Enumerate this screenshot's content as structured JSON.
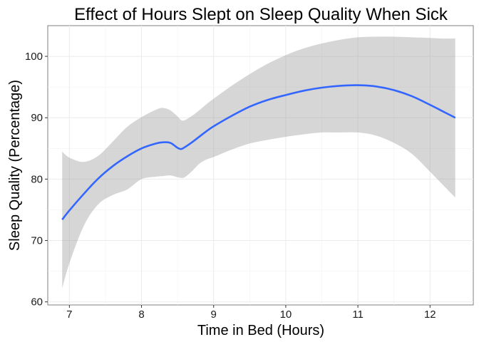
{
  "chart_data": {
    "type": "line",
    "title": "Effect of Hours Slept on Sleep Quality When Sick",
    "xlabel": "Time in Bed (Hours)",
    "ylabel": "Sleep Quality (Percentage)",
    "xlim": [
      6.7,
      12.6
    ],
    "ylim": [
      59.5,
      105
    ],
    "x_ticks": [
      7,
      8,
      9,
      10,
      11,
      12
    ],
    "y_ticks": [
      60,
      70,
      80,
      90,
      100
    ],
    "grid": true,
    "legend": "none",
    "series": [
      {
        "color": "#3366ff",
        "x": [
          6.9,
          7.0,
          7.2,
          7.4,
          7.6,
          7.8,
          8.0,
          8.2,
          8.3,
          8.4,
          8.5,
          8.55,
          8.6,
          8.7,
          8.8,
          8.9,
          9.0,
          9.25,
          9.5,
          9.75,
          10.0,
          10.25,
          10.5,
          10.75,
          11.0,
          11.25,
          11.5,
          11.75,
          12.0,
          12.2,
          12.35
        ],
        "y": [
          73.4,
          74.9,
          77.6,
          80.1,
          82.1,
          83.7,
          85.0,
          85.8,
          86.0,
          85.9,
          85.1,
          84.9,
          85.2,
          86.0,
          86.9,
          87.8,
          88.6,
          90.3,
          91.8,
          92.9,
          93.7,
          94.4,
          94.9,
          95.2,
          95.3,
          95.1,
          94.5,
          93.5,
          92.1,
          90.9,
          90.0
        ],
        "ci_upper": [
          84.5,
          83.5,
          82.8,
          83.8,
          86.1,
          88.5,
          90.1,
          91.3,
          91.6,
          91.2,
          90.2,
          89.6,
          89.6,
          90.3,
          91.2,
          92.2,
          93.1,
          95.2,
          97.1,
          98.8,
          100.2,
          101.3,
          102.1,
          102.7,
          103.1,
          103.2,
          103.2,
          103.1,
          103.0,
          102.9,
          102.9
        ],
        "ci_lower": [
          62.2,
          66.3,
          72.4,
          75.9,
          77.4,
          78.3,
          80.0,
          80.4,
          80.5,
          80.6,
          80.3,
          80.2,
          80.3,
          81.3,
          82.5,
          83.2,
          83.6,
          84.8,
          85.8,
          86.4,
          86.9,
          87.3,
          87.6,
          87.6,
          87.6,
          87.1,
          85.9,
          84.1,
          81.2,
          78.8,
          77.0
        ]
      }
    ]
  }
}
